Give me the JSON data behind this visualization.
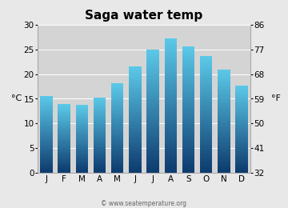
{
  "title": "Saga water temp",
  "months": [
    "J",
    "F",
    "M",
    "A",
    "M",
    "J",
    "J",
    "A",
    "S",
    "O",
    "N",
    "D"
  ],
  "values_c": [
    15.6,
    13.9,
    13.7,
    15.3,
    18.1,
    21.5,
    25.0,
    27.3,
    25.7,
    23.7,
    21.0,
    17.7
  ],
  "ylim_c": [
    0,
    30
  ],
  "yticks_c": [
    0,
    5,
    10,
    15,
    20,
    25,
    30
  ],
  "yticks_f": [
    32,
    41,
    50,
    59,
    68,
    77,
    86
  ],
  "ylabel_left": "°C",
  "ylabel_right": "°F",
  "bar_color_top": "#5bc8e8",
  "bar_color_bottom": "#0d3b6e",
  "background_color": "#e8e8e8",
  "plot_bg_color": "#d4d4d4",
  "watermark": "© www.seatemperature.org",
  "title_fontsize": 11,
  "tick_fontsize": 7.5,
  "label_fontsize": 8
}
